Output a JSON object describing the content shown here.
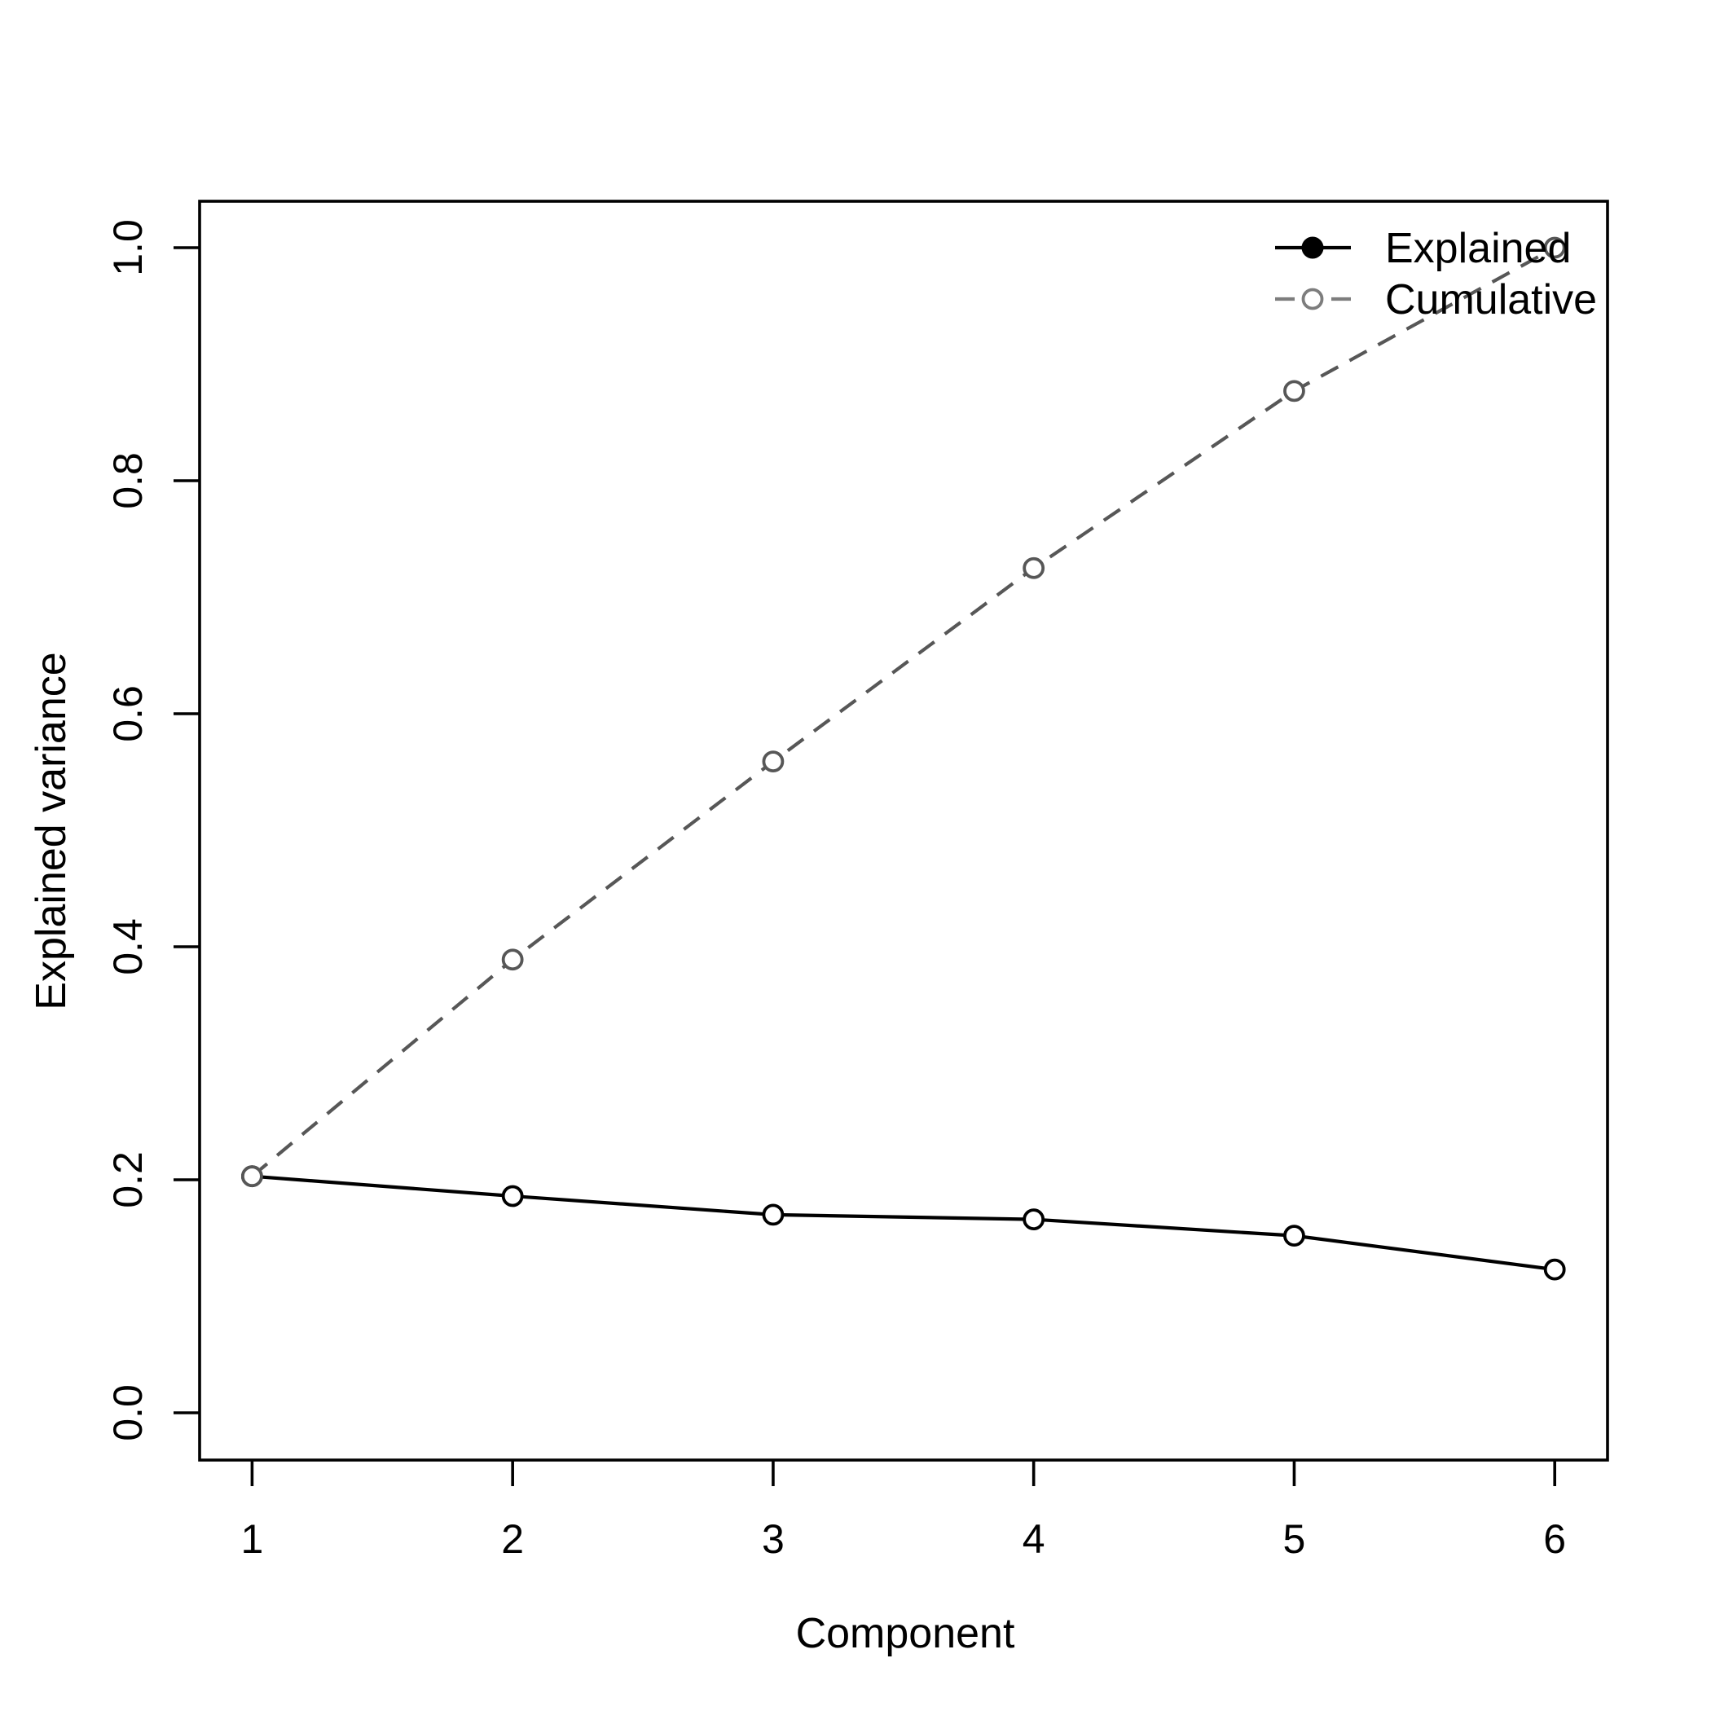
{
  "figure": {
    "background": "#ffffff",
    "frame_color": "#000000"
  },
  "chart_data": {
    "type": "line",
    "title": "",
    "xlabel": "Component",
    "ylabel": "Explained variance",
    "x": [
      1,
      2,
      3,
      4,
      5,
      6
    ],
    "x_tick_labels": [
      "1",
      "2",
      "3",
      "4",
      "5",
      "6"
    ],
    "y_tick_values": [
      0.0,
      0.2,
      0.4,
      0.6,
      0.8,
      1.0
    ],
    "y_tick_labels": [
      "0.0",
      "0.2",
      "0.4",
      "0.6",
      "0.8",
      "1.0"
    ],
    "xlim": [
      1,
      6
    ],
    "ylim": [
      0,
      1
    ],
    "grid": false,
    "legend_position": "top-right",
    "legend_box": false,
    "series": [
      {
        "name": "Explained",
        "values": [
          0.203,
          0.186,
          0.17,
          0.166,
          0.152,
          0.123
        ],
        "line_style": "solid",
        "color": "#000000",
        "marker": "open-circle",
        "legend_marker": "filled-circle",
        "legend_color": "#000000"
      },
      {
        "name": "Cumulative",
        "values": [
          0.203,
          0.389,
          0.559,
          0.725,
          0.877,
          1.0
        ],
        "line_style": "dashed",
        "color": "#575757",
        "marker": "open-circle",
        "legend_marker": "open-circle",
        "legend_color": "#7d7d7d"
      }
    ]
  }
}
